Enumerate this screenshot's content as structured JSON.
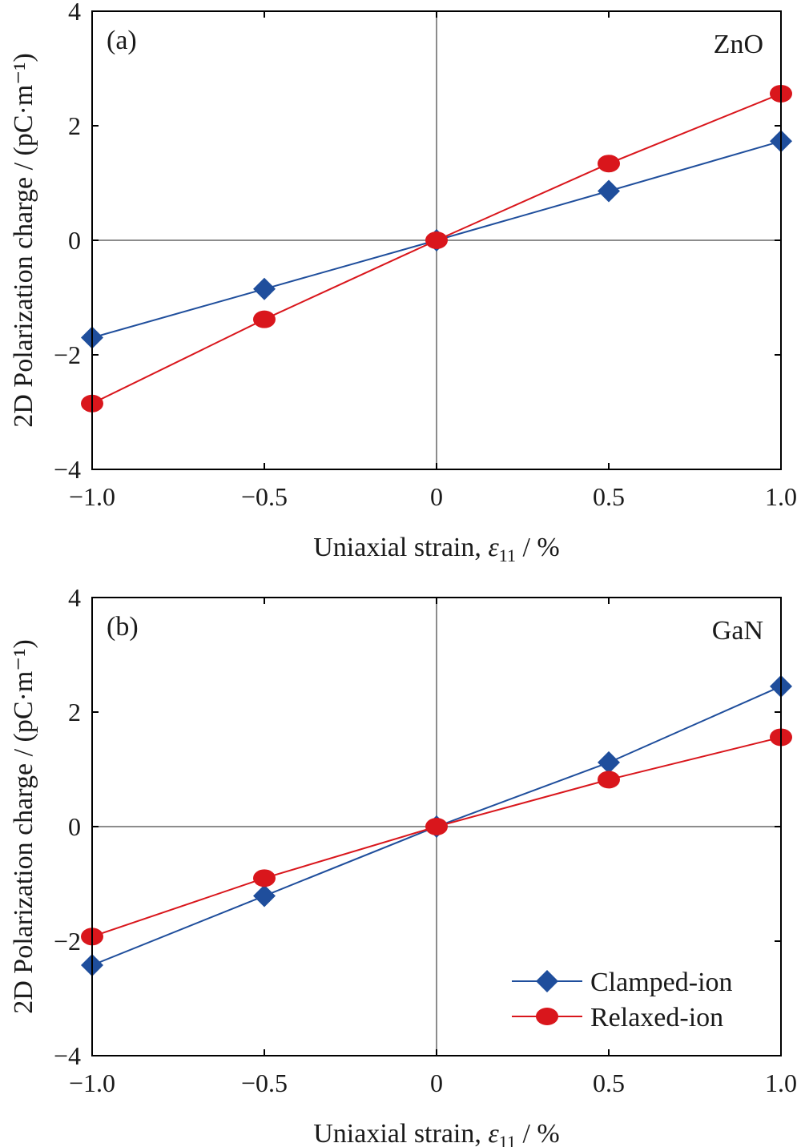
{
  "chart_data": [
    {
      "type": "line",
      "panel_label": "(a)",
      "material": "ZnO",
      "xlabel_prefix": "Uniaxial strain, ",
      "xlabel_symbol": "ε",
      "xlabel_subscript": "11",
      "xlabel_suffix": " / %",
      "ylabel": "2D Polarization charge / (pC·m⁻¹)",
      "xlim": [
        -1.0,
        1.0
      ],
      "ylim": [
        -4,
        4
      ],
      "x_ticks": [
        -1.0,
        -0.5,
        0,
        0.5,
        1.0
      ],
      "x_tick_labels": [
        "−1.0",
        "−0.5",
        "0",
        "0.5",
        "1.0"
      ],
      "y_ticks": [
        -4,
        -2,
        0,
        2,
        4
      ],
      "y_tick_labels": [
        "−4",
        "−2",
        "0",
        "2",
        "4"
      ],
      "x": [
        -1.0,
        -0.5,
        0,
        0.5,
        1.0
      ],
      "series": [
        {
          "name": "Clamped-ion",
          "marker": "diamond",
          "color": "#1f4e9c",
          "values": [
            -1.7,
            -0.85,
            0,
            0.86,
            1.73
          ]
        },
        {
          "name": "Relaxed-ion",
          "marker": "circle",
          "color": "#d9161c",
          "values": [
            -2.85,
            -1.38,
            0,
            1.34,
            2.56
          ]
        }
      ],
      "legend": null
    },
    {
      "type": "line",
      "panel_label": "(b)",
      "material": "GaN",
      "xlabel_prefix": "Uniaxial strain, ",
      "xlabel_symbol": "ε",
      "xlabel_subscript": "11",
      "xlabel_suffix": " / %",
      "ylabel": "2D Polarization charge / (pC·m⁻¹)",
      "xlim": [
        -1.0,
        1.0
      ],
      "ylim": [
        -4,
        4
      ],
      "x_ticks": [
        -1.0,
        -0.5,
        0,
        0.5,
        1.0
      ],
      "x_tick_labels": [
        "−1.0",
        "−0.5",
        "0",
        "0.5",
        "1.0"
      ],
      "y_ticks": [
        -4,
        -2,
        0,
        2,
        4
      ],
      "y_tick_labels": [
        "−4",
        "−2",
        "0",
        "2",
        "4"
      ],
      "x": [
        -1.0,
        -0.5,
        0,
        0.5,
        1.0
      ],
      "series": [
        {
          "name": "Clamped-ion",
          "marker": "diamond",
          "color": "#1f4e9c",
          "values": [
            -2.42,
            -1.21,
            0,
            1.12,
            2.45
          ]
        },
        {
          "name": "Relaxed-ion",
          "marker": "circle",
          "color": "#d9161c",
          "values": [
            -1.92,
            -0.9,
            0,
            0.82,
            1.56
          ]
        }
      ],
      "legend": "bottom-right"
    }
  ]
}
